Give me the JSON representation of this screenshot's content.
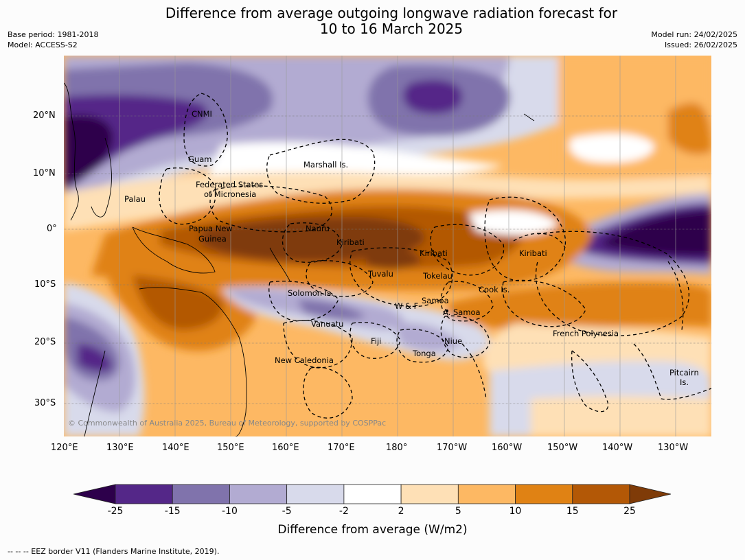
{
  "title_line1": "Difference from average outgoing longwave radiation forecast for",
  "title_line2": "10 to 16 March 2025",
  "base_period": "Base period: 1981-2018",
  "model": "Model: ACCESS-S2",
  "model_run": "Model run: 24/02/2025",
  "issued": "Issued: 26/02/2025",
  "copyright": "© Commonwealth of Australia 2025, Bureau of Meteorology, supported by COSPPac",
  "footer": "--  --  -- EEZ border V11 (Flanders Marine Institute, 2019).",
  "colorbar": {
    "title": "Difference from average (W/m2)",
    "labels": [
      "-25",
      "-15",
      "-10",
      "-5",
      "-2",
      "2",
      "5",
      "10",
      "15",
      "25"
    ],
    "colors": [
      "#2d004b",
      "#542788",
      "#8073ac",
      "#b2abd2",
      "#d8daeb",
      "#ffffff",
      "#fee0b6",
      "#fdb863",
      "#e08214",
      "#b35806",
      "#7f3b08"
    ]
  },
  "axes": {
    "lon_labels": [
      "120°E",
      "130°E",
      "140°E",
      "150°E",
      "160°E",
      "170°E",
      "180°",
      "170°W",
      "160°W",
      "150°W",
      "140°W",
      "130°W"
    ],
    "lat_labels": [
      "20°N",
      "10°N",
      "0°",
      "10°S",
      "20°S",
      "30°S"
    ]
  },
  "places": [
    "CNMI",
    "Guam",
    "Marshall Is.",
    "Federated States",
    "of Micronesia",
    "Palau",
    "Papua New",
    "Guinea",
    "Nauru",
    "Kiribati",
    "Kiribati",
    "Kiribati",
    "Tuvalu",
    "Tokelau",
    "Cook Is.",
    "Solomon Is.",
    "W & F",
    "Samoa",
    "A. Samoa",
    "Vanuatu",
    "Fiji",
    "Niue",
    "Tonga",
    "French Polynesia",
    "New Caledonia",
    "Pitcairn",
    "Is."
  ]
}
